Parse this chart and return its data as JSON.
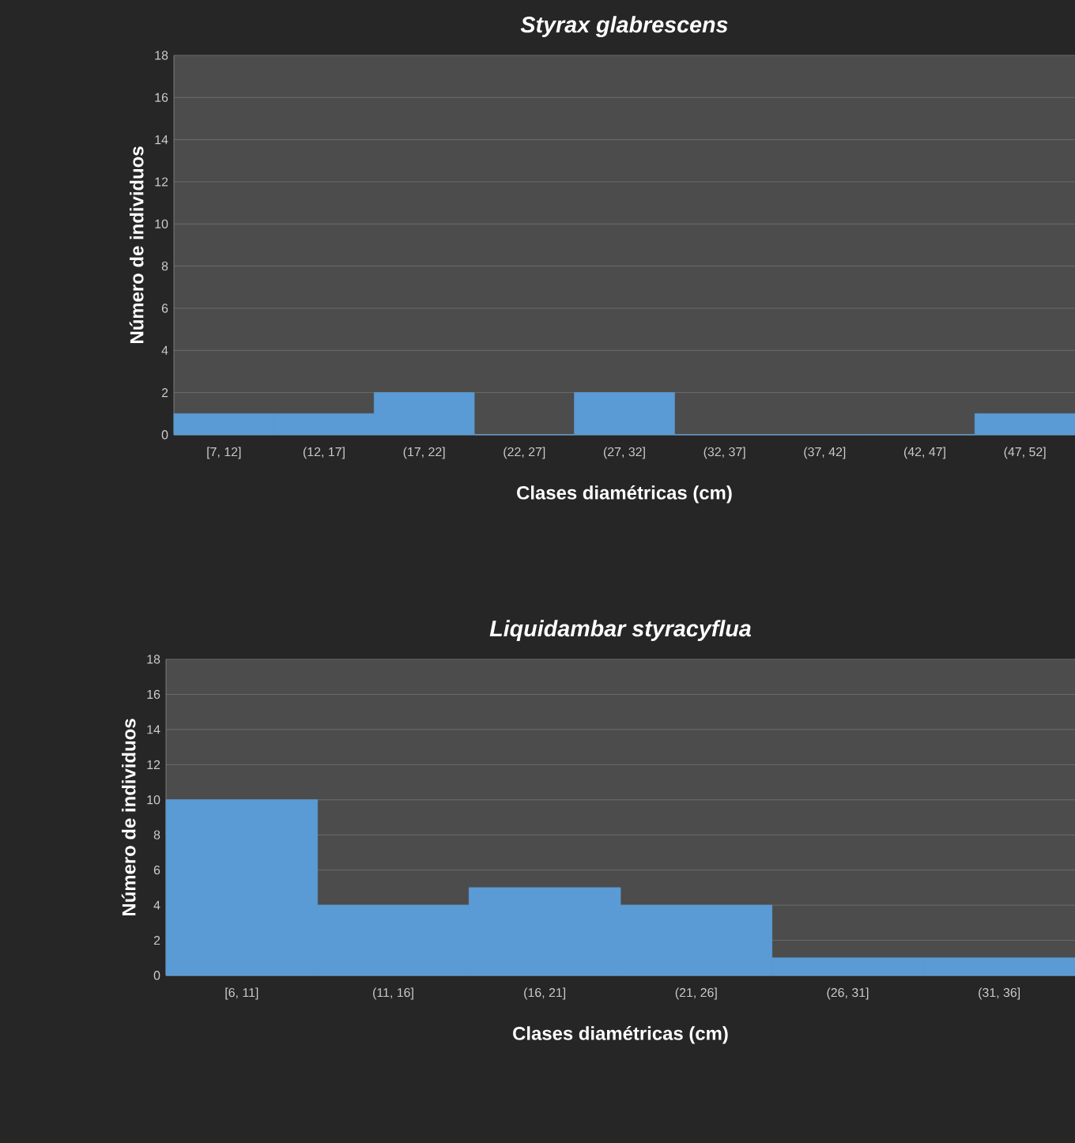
{
  "chart_data": [
    {
      "type": "bar",
      "title": "Styrax glabrescens",
      "xlabel": "Clases diamétricas (cm)",
      "ylabel": "Número de individuos",
      "categories": [
        "[7, 12]",
        "(12, 17]",
        "(17, 22]",
        "(22, 27]",
        "(27, 32]",
        "(32, 37]",
        "(37, 42]",
        "(42, 47]",
        "(47, 52]"
      ],
      "values": [
        1,
        1,
        2,
        0,
        2,
        0,
        0,
        0,
        1
      ],
      "color": "#5b9bd5",
      "grid": "y",
      "ylim": [
        0,
        18
      ],
      "yticks": [
        0,
        2,
        4,
        6,
        8,
        10,
        12,
        14,
        16,
        18
      ]
    },
    {
      "type": "bar",
      "title": "Liquidambar styracyflua",
      "xlabel": "Clases diamétricas (cm)",
      "ylabel": "Número de individuos",
      "categories": [
        "[6, 11]",
        "(11, 16]",
        "(16, 21]",
        "(21, 26]",
        "(26, 31]",
        "(31, 36]"
      ],
      "values": [
        10,
        4,
        5,
        4,
        1,
        1
      ],
      "color": "#5b9bd5",
      "grid": "y",
      "ylim": [
        0,
        18
      ],
      "yticks": [
        0,
        2,
        4,
        6,
        8,
        10,
        12,
        14,
        16,
        18
      ]
    }
  ]
}
